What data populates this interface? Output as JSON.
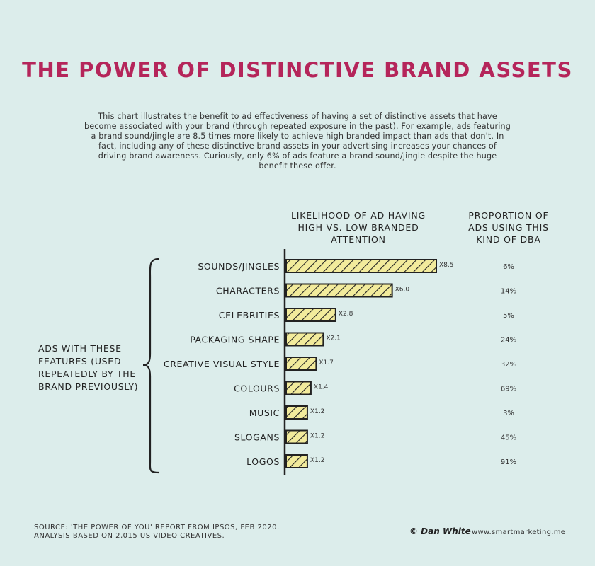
{
  "title": "THE POWER OF DISTINCTIVE BRAND ASSETS",
  "intro": "This chart illustrates the benefit to ad effectiveness of having a set of distinctive assets that have become associated with your brand (through repeated exposure in the past). For example, ads featuring a brand sound/jingle are 8.5 times more likely to achieve high branded impact than ads that don't. In fact, including any of these distinctive brand assets in your advertising increases your chances of driving brand awareness. Curiously, only 6% of ads feature a brand sound/jingle despite the huge benefit these offer.",
  "headers": {
    "likelihood": "LIKELIHOOD OF AD HAVING HIGH VS. LOW BRANDED ATTENTION",
    "proportion": "PROPORTION OF ADS USING THIS KIND OF DBA"
  },
  "group_label": "ADS WITH THESE FEATURES (USED REPEATEDLY BY THE BRAND PREVIOUSLY)",
  "footer": {
    "source": "SOURCE: 'THE POWER OF YOU' REPORT FROM IPSOS, FEB 2020.",
    "analysis": "ANALYSIS BASED ON 2,015 US VIDEO CREATIVES.",
    "author": "© Dan White",
    "site": "www.smartmarketing.me"
  },
  "colors": {
    "title": "#b5255a",
    "background": "#dcedeb",
    "bar_fill": "#f2eb9c",
    "bar_stroke": "#222222"
  },
  "chart_data": {
    "type": "bar",
    "orientation": "horizontal",
    "categories": [
      "SOUNDS/JINGLES",
      "CHARACTERS",
      "CELEBRITIES",
      "PACKAGING SHAPE",
      "CREATIVE VISUAL STYLE",
      "COLOURS",
      "MUSIC",
      "SLOGANS",
      "LOGOS"
    ],
    "values": [
      8.5,
      6.0,
      2.8,
      2.1,
      1.7,
      1.4,
      1.2,
      1.2,
      1.2
    ],
    "value_labels": [
      "X8.5",
      "X6.0",
      "X2.8",
      "X2.1",
      "X1.7",
      "X1.4",
      "X1.2",
      "X1.2",
      "X1.2"
    ],
    "proportions": [
      "6%",
      "14%",
      "5%",
      "24%",
      "32%",
      "69%",
      "3%",
      "45%",
      "91%"
    ],
    "xlim": [
      0,
      8.5
    ],
    "grid": false,
    "legend": "none"
  }
}
